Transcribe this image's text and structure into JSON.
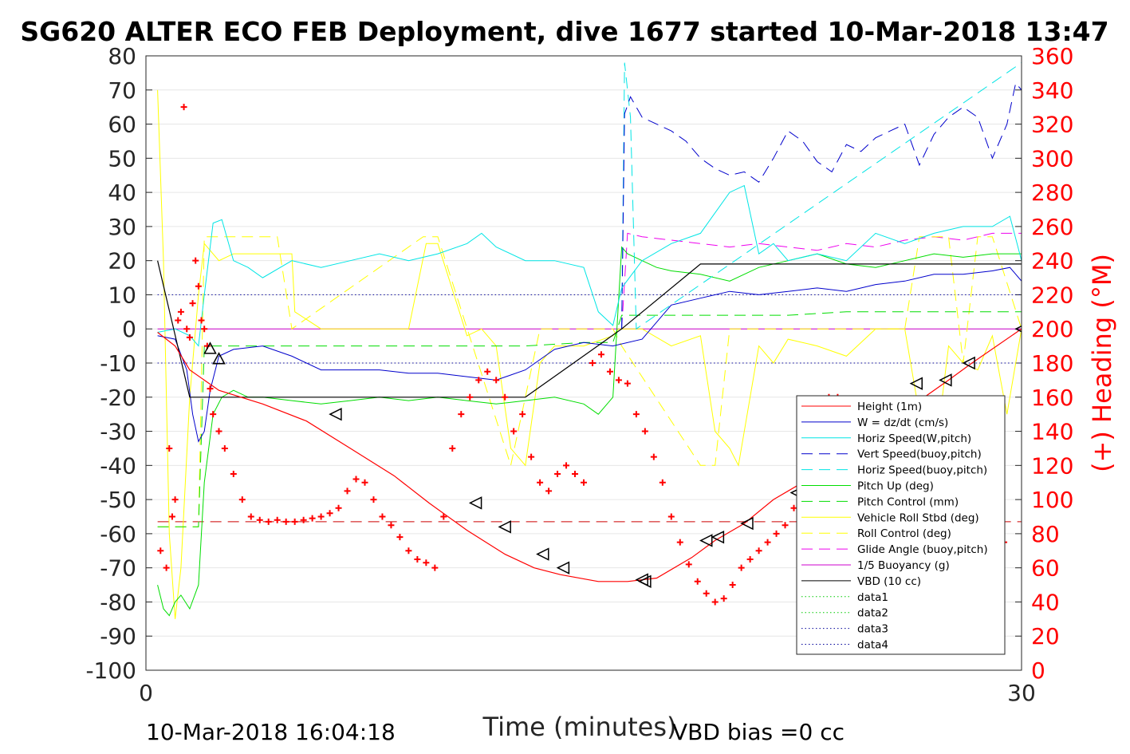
{
  "chart_data": {
    "type": "line",
    "title": "SG620 ALTER ECO FEB Deployment, dive 1677 started 10-Mar-2018 13:47",
    "xlabel": "Time (minutes)",
    "ylabel": "",
    "y2label": "(+) Heading (°M)",
    "xlim": [
      0,
      30
    ],
    "ylim": [
      -100,
      80
    ],
    "y2lim": [
      0,
      360
    ],
    "x_ticks": [
      "0",
      "30"
    ],
    "y_ticks": [
      "80",
      "70",
      "60",
      "50",
      "40",
      "30",
      "20",
      "10",
      "0",
      "-10",
      "-20",
      "-30",
      "-40",
      "-50",
      "-60",
      "-70",
      "-80",
      "-90",
      "-100"
    ],
    "y2_ticks": [
      "360",
      "340",
      "320",
      "300",
      "280",
      "260",
      "240",
      "220",
      "200",
      "180",
      "160",
      "140",
      "120",
      "100",
      "80",
      "60",
      "40",
      "20",
      "0"
    ],
    "grid": true,
    "legend_position": "lower-right",
    "footer_left": "10-Mar-2018 16:04:18",
    "footer_right": "VBD bias =0 cc",
    "colors": {
      "height": "#ff0000",
      "w": "#0000cc",
      "horiz": "#00e5e5",
      "vert_buoy": "#0000cc",
      "horiz_buoy": "#00e5e5",
      "pitch": "#00dd00",
      "pitch_ctl": "#00dd00",
      "roll": "#ffff00",
      "roll_ctl": "#ffff00",
      "glide": "#ee00ee",
      "buoy": "#cc00cc",
      "vbd": "#000000",
      "data1": "#00cc00",
      "data2": "#00cc00",
      "data3": "#000099",
      "data4": "#000099",
      "heading": "#ff0000",
      "desired_heading": "#cc0000"
    },
    "series": [
      {
        "key": "height",
        "name": "Height (1m)",
        "style": "solid",
        "x": [
          0.4,
          1.0,
          1.5,
          2.5,
          4,
          5.5,
          7,
          8.5,
          9.7,
          11,
          12.3,
          13.3,
          14.2,
          15.5,
          16.5,
          17.5,
          18.7,
          19.5,
          20.5,
          21.5,
          22.5,
          23.5,
          24.5,
          25.5,
          26.5,
          27.5,
          28.3,
          30.0
        ],
        "y": [
          -1,
          -5,
          -12,
          -18,
          -22,
          -27,
          -35,
          -43,
          -51,
          -59,
          -66,
          -70,
          -72,
          -74,
          -74,
          -73,
          -67,
          -62,
          -57,
          -50,
          -45,
          -40,
          -34,
          -28,
          -21,
          -15,
          -10,
          0
        ]
      },
      {
        "key": "w",
        "name": "W = dz/dt (cm/s)",
        "style": "solid",
        "x": [
          0.4,
          1.0,
          1.4,
          1.6,
          1.8,
          2.0,
          2.2,
          2.5,
          3,
          4,
          5,
          6,
          7,
          8,
          9,
          10,
          11,
          12,
          13,
          14,
          15,
          16,
          17,
          18,
          19,
          20,
          21,
          22,
          23,
          24,
          25,
          26,
          27,
          28,
          29,
          29.6,
          30.0
        ],
        "y": [
          -2,
          -3,
          -12,
          -25,
          -33,
          -30,
          -18,
          -8,
          -6,
          -5,
          -8,
          -12,
          -12,
          -12,
          -13,
          -13,
          -14,
          -15,
          -12,
          -6,
          -4,
          -5,
          -3,
          7,
          9,
          11,
          10,
          11,
          12,
          11,
          13,
          14,
          16,
          16,
          17,
          18,
          14
        ]
      },
      {
        "key": "horiz",
        "name": "Horiz Speed(W,pitch)",
        "style": "solid",
        "x": [
          0.4,
          1.0,
          1.5,
          1.8,
          2.0,
          2.3,
          2.6,
          3,
          3.5,
          4,
          5,
          6,
          7,
          8,
          9,
          10,
          11,
          11.5,
          12,
          13,
          14,
          15,
          15.5,
          16,
          16.3,
          17,
          18,
          19,
          20,
          20.5,
          21,
          21.5,
          22,
          23,
          24,
          25,
          26,
          27,
          28,
          29,
          29.6,
          30.0
        ],
        "y": [
          -1,
          0,
          -2,
          -5,
          10,
          31,
          32,
          20,
          18,
          15,
          20,
          18,
          20,
          22,
          20,
          22,
          25,
          28,
          24,
          20,
          20,
          18,
          5,
          1,
          12,
          20,
          25,
          28,
          40,
          42,
          22,
          25,
          20,
          22,
          20,
          28,
          25,
          28,
          30,
          30,
          33,
          20
        ]
      },
      {
        "key": "vert_buoy",
        "name": "Vert Speed(buoy,pitch)",
        "style": "dash",
        "x": [
          16.3,
          16.4,
          16.6,
          17,
          17.5,
          18,
          18.5,
          19,
          19.5,
          20,
          20.5,
          21,
          21.5,
          22,
          22.5,
          23,
          23.5,
          24,
          24.5,
          25,
          25.5,
          26,
          26.5,
          27,
          27.5,
          28,
          28.5,
          29,
          29.5,
          29.8,
          30.0
        ],
        "y": [
          0,
          63,
          68,
          62,
          60,
          58,
          55,
          50,
          47,
          45,
          46,
          43,
          50,
          58,
          55,
          49,
          46,
          54,
          52,
          56,
          58,
          60,
          48,
          57,
          62,
          65,
          62,
          50,
          60,
          72,
          70
        ]
      },
      {
        "key": "horiz_buoy",
        "name": "Horiz Speed(buoy,pitch)",
        "style": "dash",
        "x": [
          16.3,
          16.4,
          16.6,
          16.8,
          30.0
        ],
        "y": [
          0,
          78,
          62,
          0,
          78
        ]
      },
      {
        "key": "pitch",
        "name": "Pitch Up (deg)",
        "style": "solid",
        "x": [
          0.4,
          0.6,
          0.8,
          1.0,
          1.2,
          1.5,
          1.8,
          2.0,
          2.3,
          2.6,
          3,
          3.5,
          4,
          5,
          6,
          7,
          8,
          9,
          10,
          11,
          12,
          13,
          14,
          15,
          15.5,
          16,
          16.3,
          16.5,
          17,
          17.5,
          18,
          19,
          20,
          21,
          22,
          23,
          24,
          25,
          26,
          27,
          28,
          29,
          30.0
        ],
        "y": [
          -75,
          -82,
          -84,
          -80,
          -78,
          -82,
          -75,
          -45,
          -25,
          -20,
          -18,
          -20,
          -20,
          -21,
          -22,
          -21,
          -20,
          -21,
          -20,
          -21,
          -22,
          -21,
          -20,
          -22,
          -25,
          -20,
          24,
          22,
          20,
          18,
          17,
          16,
          14,
          18,
          20,
          22,
          19,
          18,
          20,
          22,
          21,
          22,
          22
        ]
      },
      {
        "key": "pitch_ctl",
        "name": "Pitch Control (mm)",
        "style": "dash",
        "x": [
          0.4,
          1.8,
          2.0,
          3,
          8,
          13,
          15,
          16,
          16.3,
          18,
          20,
          22,
          24,
          26,
          28,
          30.0
        ],
        "y": [
          -58,
          -58,
          -5,
          -5,
          -5,
          -5,
          -4,
          -4,
          4,
          4,
          4,
          4,
          5,
          5,
          5,
          5
        ]
      },
      {
        "key": "roll",
        "name": "Vehicle Roll Stbd (deg)",
        "style": "solid",
        "x": [
          0.4,
          0.6,
          0.8,
          1.0,
          1.2,
          1.5,
          1.8,
          2.0,
          2.5,
          3,
          4,
          5,
          5.1,
          6,
          8,
          9,
          9.6,
          10,
          11,
          11.5,
          12,
          12.5,
          13,
          13.5,
          14,
          15,
          16,
          16.2,
          17,
          18,
          19,
          19.5,
          20,
          20.3,
          21,
          21.5,
          22,
          23,
          24,
          25,
          26,
          26.5,
          27,
          27.5,
          28,
          28.5,
          29,
          29.5,
          30.0
        ],
        "y": [
          70,
          20,
          -60,
          -85,
          -70,
          -20,
          10,
          25,
          20,
          22,
          22,
          22,
          5,
          0,
          0,
          0,
          25,
          25,
          -2,
          0,
          -5,
          -35,
          -40,
          -10,
          -5,
          -5,
          -2,
          0,
          0,
          -5,
          -2,
          -30,
          -35,
          -40,
          -5,
          -10,
          -3,
          -5,
          -8,
          0,
          0,
          -25,
          -40,
          -5,
          -10,
          -12,
          -2,
          -25,
          0
        ]
      },
      {
        "key": "roll_ctl",
        "name": "Roll Control (deg)",
        "style": "dash",
        "x": [
          0.4,
          1.8,
          2.0,
          4.5,
          5.0,
          9.5,
          10,
          12.5,
          13.5,
          16,
          16.3,
          19,
          19.5,
          20,
          26,
          26.5,
          27.5,
          28,
          28.5,
          29,
          30.0
        ],
        "y": [
          -58,
          -58,
          27,
          27,
          0,
          27,
          27,
          -40,
          0,
          0,
          -5,
          -40,
          -40,
          0,
          0,
          27,
          27,
          -10,
          27,
          27,
          0
        ]
      },
      {
        "key": "glide",
        "name": "Glide Angle (buoy,pitch)",
        "style": "dash",
        "x": [
          16.3,
          16.5,
          17,
          18,
          19,
          20,
          21,
          22,
          23,
          24,
          25,
          26,
          27,
          28,
          29,
          30.0
        ],
        "y": [
          0,
          28,
          27,
          26,
          25,
          24,
          25,
          24,
          23,
          25,
          24,
          26,
          27,
          26,
          28,
          28
        ]
      },
      {
        "key": "buoy",
        "name": "1/5 Buoyancy (g)",
        "style": "solid",
        "x": [
          0.4,
          16.3,
          16.4,
          17,
          20,
          23,
          26,
          29.6,
          30.0
        ],
        "y": [
          0,
          0,
          0,
          0,
          0,
          0,
          0,
          0,
          0
        ]
      },
      {
        "key": "vbd",
        "name": "VBD (10 cc)",
        "style": "solid",
        "x": [
          0.4,
          1.5,
          2.5,
          6,
          10,
          13,
          16.3,
          19,
          19.5,
          20,
          22,
          26,
          30.0
        ],
        "y": [
          20,
          -20,
          -20,
          -20,
          -20,
          -20,
          0,
          19,
          19,
          19,
          19,
          19,
          19
        ]
      },
      {
        "key": "data1",
        "name": "data1",
        "style": "dot",
        "x": [],
        "y": []
      },
      {
        "key": "data2",
        "name": "data2",
        "style": "dot",
        "x": [],
        "y": []
      },
      {
        "key": "data3",
        "name": "data3",
        "style": "dot",
        "x": [
          0.4,
          30.0
        ],
        "y": [
          10,
          10
        ]
      },
      {
        "key": "data4",
        "name": "data4",
        "style": "dot",
        "x": [
          0.4,
          30.0
        ],
        "y": [
          -10,
          -10
        ]
      }
    ],
    "heading": {
      "name": "Heading (°M)",
      "desired_heading": 87,
      "x": [
        0.5,
        0.7,
        0.8,
        0.9,
        1.0,
        1.1,
        1.2,
        1.3,
        1.4,
        1.5,
        1.6,
        1.7,
        1.8,
        1.9,
        2.0,
        2.1,
        2.2,
        2.3,
        2.5,
        2.7,
        3,
        3.3,
        3.6,
        3.9,
        4.2,
        4.5,
        4.8,
        5.1,
        5.4,
        5.7,
        6,
        6.3,
        6.6,
        6.9,
        7.2,
        7.5,
        7.8,
        8.1,
        8.4,
        8.7,
        9,
        9.3,
        9.6,
        9.9,
        10.2,
        10.5,
        10.8,
        11.1,
        11.4,
        11.7,
        12,
        12.3,
        12.6,
        12.9,
        13.2,
        13.5,
        13.8,
        14.1,
        14.4,
        14.7,
        15.0,
        15.3,
        15.6,
        15.9,
        16.2,
        16.5,
        16.8,
        17.1,
        17.4,
        17.7,
        18.0,
        18.3,
        18.6,
        18.9,
        19.2,
        19.5,
        19.8,
        20.1,
        20.4,
        20.7,
        21.0,
        21.3,
        21.6,
        21.9,
        22.2,
        22.5,
        22.8,
        23.1,
        23.4,
        23.7,
        24.0,
        24.3,
        24.6,
        24.9,
        25.2,
        25.5,
        25.8,
        26.1,
        26.4,
        26.7,
        27.0,
        27.3,
        27.6,
        27.9,
        28.2,
        28.5,
        28.8,
        29.1,
        29.4
      ],
      "y": [
        70,
        60,
        130,
        90,
        100,
        205,
        210,
        330,
        200,
        195,
        215,
        240,
        225,
        205,
        200,
        190,
        165,
        150,
        140,
        130,
        115,
        100,
        90,
        88,
        87,
        88,
        87,
        87,
        88,
        89,
        90,
        92,
        95,
        105,
        112,
        110,
        100,
        90,
        85,
        78,
        70,
        65,
        63,
        60,
        90,
        130,
        150,
        160,
        170,
        175,
        170,
        160,
        140,
        150,
        125,
        110,
        105,
        115,
        120,
        115,
        110,
        180,
        185,
        175,
        170,
        168,
        150,
        140,
        125,
        110,
        90,
        75,
        62,
        52,
        45,
        40,
        42,
        50,
        60,
        65,
        70,
        75,
        80,
        85,
        95,
        115,
        140,
        150,
        160,
        160,
        150,
        145,
        135,
        120,
        105,
        90,
        78,
        70,
        62,
        58,
        55,
        48,
        40,
        35,
        48,
        52,
        60,
        70,
        75
      ]
    },
    "markers": {
      "x": [
        2.2,
        2.5,
        6.5,
        11.3,
        12.3,
        13.6,
        14.3,
        17.0,
        17.1,
        19.2,
        19.6,
        20.6,
        22.3,
        23.3,
        24.4,
        25.3,
        26.4,
        27.4,
        28.2,
        30.0
      ],
      "y": [
        -6,
        -9,
        -25,
        -51,
        -58,
        -66,
        -70,
        -73.5,
        -74,
        -62,
        -61,
        -57,
        -48,
        -42,
        -32,
        -27,
        -16,
        -15,
        -10,
        0
      ]
    }
  }
}
